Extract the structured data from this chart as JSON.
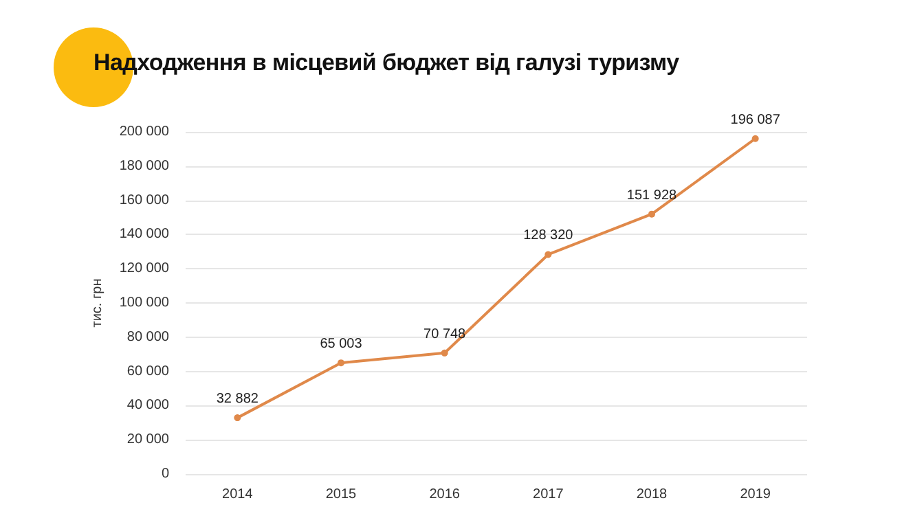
{
  "chart_data": {
    "type": "line",
    "title": "Надходження в місцевий бюджет від галузі туризму",
    "ylabel": "тис. грн",
    "categories": [
      "2014",
      "2015",
      "2016",
      "2017",
      "2018",
      "2019"
    ],
    "series": [
      {
        "color": "#e0894a",
        "values": [
          32882,
          65003,
          70748,
          128320,
          151928,
          196087
        ],
        "value_labels": [
          "32 882",
          "65 003",
          "70 748",
          "128 320",
          "151 928",
          "196 087"
        ]
      }
    ],
    "ylim": [
      0,
      200000
    ],
    "yticks": [
      {
        "value": 0,
        "label": "0"
      },
      {
        "value": 20000,
        "label": "20 000"
      },
      {
        "value": 40000,
        "label": "40 000"
      },
      {
        "value": 60000,
        "label": "60 000"
      },
      {
        "value": 80000,
        "label": "80 000"
      },
      {
        "value": 100000,
        "label": "100 000"
      },
      {
        "value": 120000,
        "label": "120 000"
      },
      {
        "value": 140000,
        "label": "140 000"
      },
      {
        "value": 160000,
        "label": "160 000"
      },
      {
        "value": 180000,
        "label": "180 000"
      },
      {
        "value": 200000,
        "label": "200 000"
      }
    ],
    "grid": "y",
    "marker": "circle",
    "line_style": "solid"
  }
}
